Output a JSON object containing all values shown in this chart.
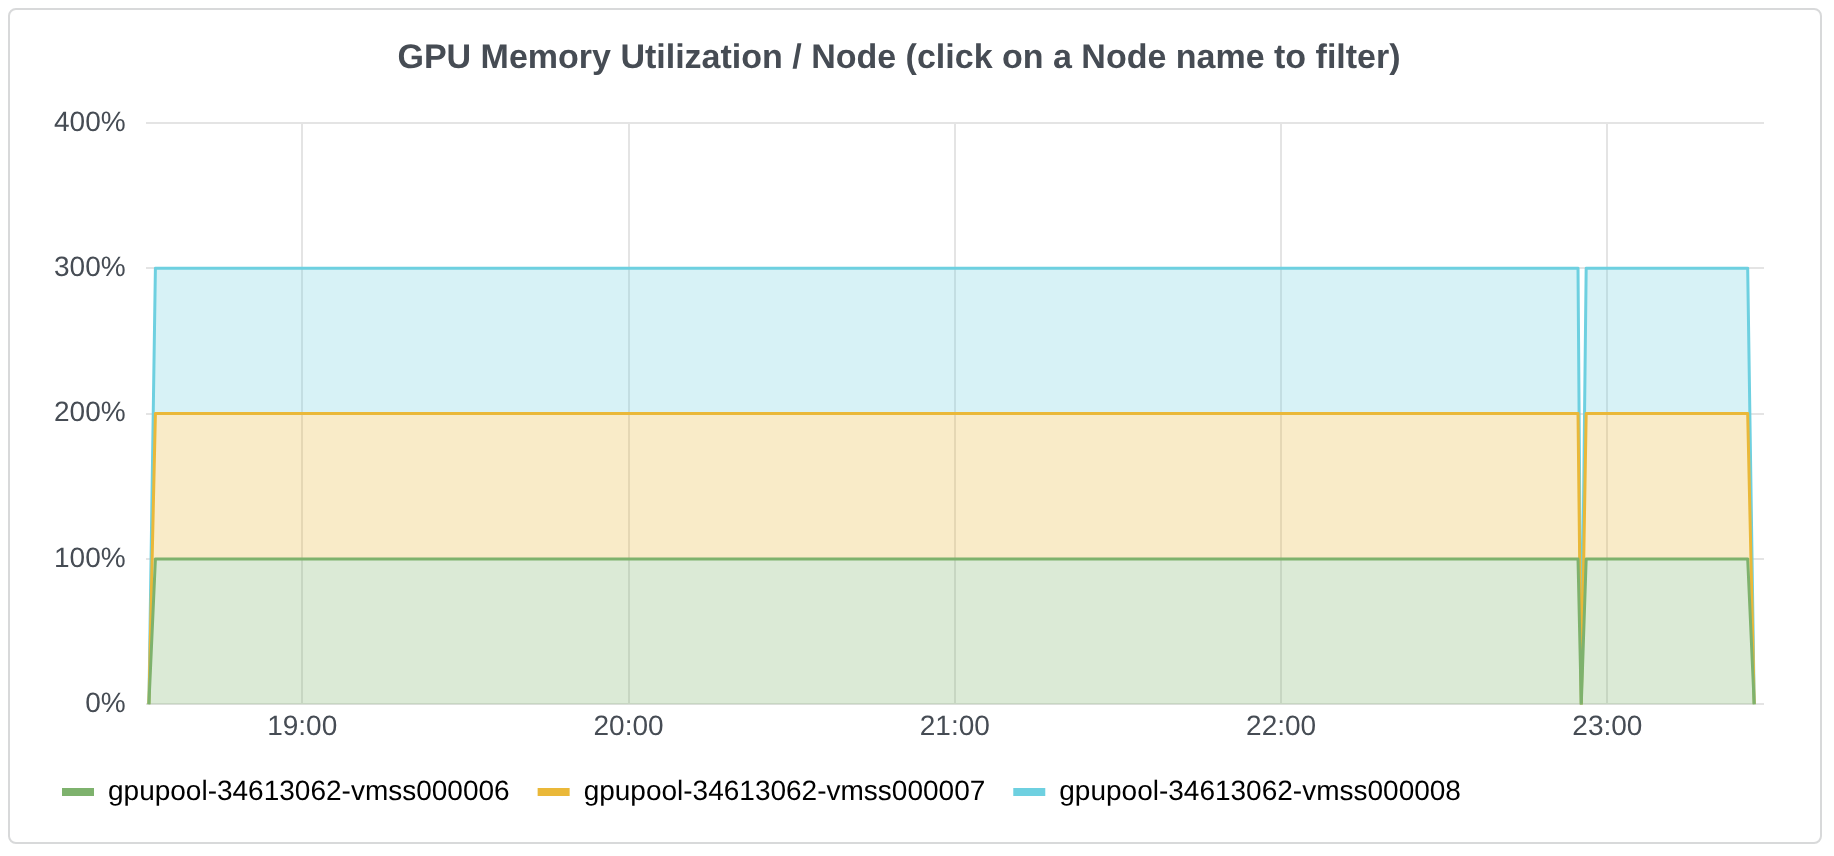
{
  "chart_data": {
    "type": "area",
    "title": "GPU Memory Utilization / Node (click on a Node name to filter)",
    "stacked": true,
    "grid": true,
    "legend": "bottom left",
    "marker": "none",
    "xlim": [
      18.52,
      23.48
    ],
    "xticks": [
      {
        "value": 19,
        "label": "19:00"
      },
      {
        "value": 20,
        "label": "20:00"
      },
      {
        "value": 21,
        "label": "21:00"
      },
      {
        "value": 22,
        "label": "22:00"
      },
      {
        "value": 23,
        "label": "23:00"
      }
    ],
    "ylim": [
      0,
      400
    ],
    "yticks": [
      {
        "value": 0,
        "label": "0%"
      },
      {
        "value": 100,
        "label": "100%"
      },
      {
        "value": 200,
        "label": "200%"
      },
      {
        "value": 300,
        "label": "300%"
      },
      {
        "value": 400,
        "label": "400%"
      }
    ],
    "series": [
      {
        "name": "gpupool-34613062-vmss000006",
        "color": "#7eb26d",
        "x": [
          18.53,
          18.55,
          22.91,
          22.92,
          22.935,
          23.43,
          23.45
        ],
        "values": [
          0,
          100,
          100,
          0,
          100,
          100,
          0
        ]
      },
      {
        "name": "gpupool-34613062-vmss000007",
        "color": "#eab839",
        "x": [
          18.53,
          18.55,
          22.91,
          22.92,
          22.935,
          23.43,
          23.45
        ],
        "values": [
          0,
          100,
          100,
          0,
          100,
          100,
          0
        ]
      },
      {
        "name": "gpupool-34613062-vmss000008",
        "color": "#6ed0e0",
        "x": [
          18.53,
          18.55,
          22.91,
          22.92,
          22.935,
          23.43,
          23.45
        ],
        "values": [
          0,
          100,
          100,
          0,
          100,
          100,
          0
        ]
      }
    ]
  }
}
